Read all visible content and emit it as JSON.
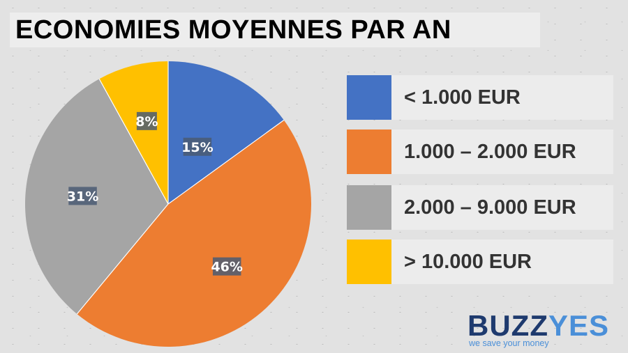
{
  "title": "ECONOMIES MOYENNES PAR AN",
  "chart_data": {
    "type": "pie",
    "title": "ECONOMIES MOYENNES PAR AN",
    "categories": [
      "< 1.000 EUR",
      "1.000 – 2.000 EUR",
      "2.000 – 9.000 EUR",
      "> 10.000 EUR"
    ],
    "values": [
      15,
      46,
      31,
      8
    ],
    "labels": [
      "15%",
      "46%",
      "31%",
      "8%"
    ],
    "colors": [
      "#4472c4",
      "#ed7d31",
      "#a5a5a5",
      "#ffc000"
    ],
    "legend_position": "right"
  },
  "logo": {
    "brand_part1": "BUZZ",
    "brand_part2": "YES",
    "tagline": "we save your money"
  }
}
